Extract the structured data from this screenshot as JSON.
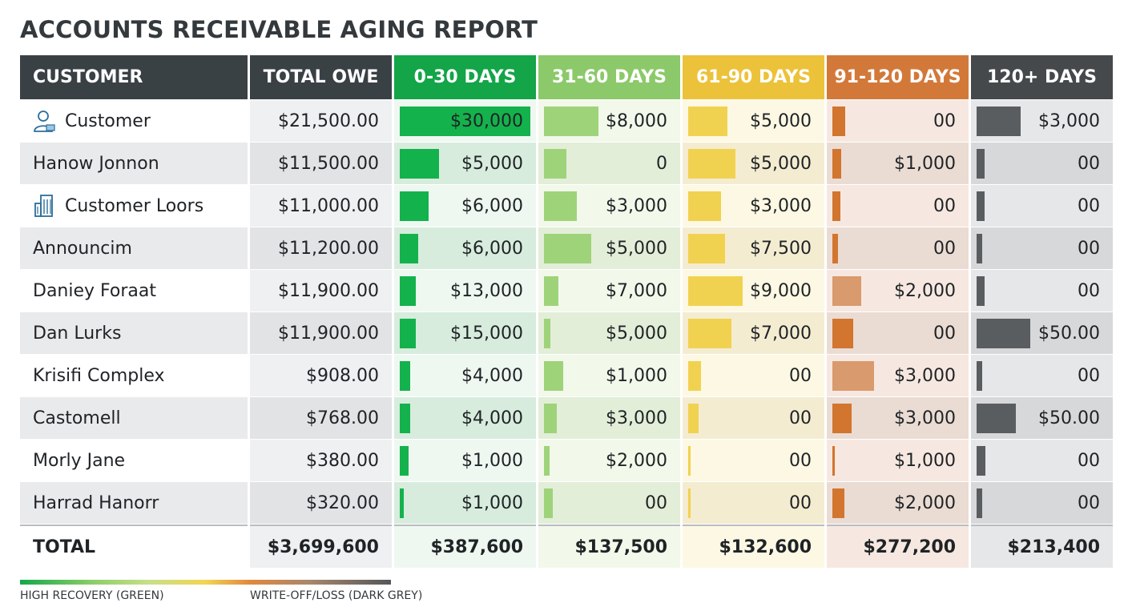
{
  "title": "ACCOUNTS RECEIVABLE AGING REPORT",
  "headers": {
    "customer": "CUSTOMER",
    "total": "TOTAL OWE",
    "b1": "0-30 DAYS",
    "b2": "31-60 DAYS",
    "b3": "61-90 DAYS",
    "b4": "91-120 DAYS",
    "b5": "120+ DAYS"
  },
  "colors": {
    "header_customer": "#3a4145",
    "header_total": "#3a4145",
    "header_b1": "#13a548",
    "header_b2": "#8cc96a",
    "header_b3": "#ecc23a",
    "header_b4": "#d2793a",
    "header_b5": "#45494b",
    "bar_b1": "#14b24c",
    "bar_b2": "#9fd37a",
    "bar_b3": "#f1d250",
    "bar_b4_light": "#d99a6e",
    "bar_b4_dark": "#d2752f",
    "bar_b5": "#5a5d60"
  },
  "rows": [
    {
      "customer": "Customer",
      "icon": "person-icon",
      "total": "$21,500.00",
      "b1": "$30,000",
      "b2": "$8,000",
      "b3": "$5,000",
      "b4": "00",
      "b5": "$3,000"
    },
    {
      "customer": "Hanow Jonnon",
      "icon": "",
      "total": "$11,500.00",
      "b1": "$5,000",
      "b2": "0",
      "b3": "$5,000",
      "b4": "$1,000",
      "b5": "00"
    },
    {
      "customer": "Customer Loors",
      "icon": "building-icon",
      "total": "$11,000.00",
      "b1": "$6,000",
      "b2": "$3,000",
      "b3": "$3,000",
      "b4": "00",
      "b5": "00"
    },
    {
      "customer": "Announcim",
      "icon": "",
      "total": "$11,200.00",
      "b1": "$6,000",
      "b2": "$5,000",
      "b3": "$7,500",
      "b4": "00",
      "b5": "00"
    },
    {
      "customer": "Daniey Foraat",
      "icon": "",
      "total": "$11,900.00",
      "b1": "$13,000",
      "b2": "$7,000",
      "b3": "$9,000",
      "b4": "$2,000",
      "b5": "00"
    },
    {
      "customer": "Dan Lurks",
      "icon": "",
      "total": "$11,900.00",
      "b1": "$15,000",
      "b2": "$5,000",
      "b3": "$7,000",
      "b4": "00",
      "b5": "$50.00"
    },
    {
      "customer": "Krisifi Complex",
      "icon": "",
      "total": "$908.00",
      "b1": "$4,000",
      "b2": "$1,000",
      "b3": "00",
      "b4": "$3,000",
      "b5": "00"
    },
    {
      "customer": "Castomell",
      "icon": "",
      "total": "$768.00",
      "b1": "$4,000",
      "b2": "$3,000",
      "b3": "00",
      "b4": "$3,000",
      "b5": "$50.00"
    },
    {
      "customer": "Morly Jane",
      "icon": "",
      "total": "$380.00",
      "b1": "$1,000",
      "b2": "$2,000",
      "b3": "00",
      "b4": "$1,000",
      "b5": "00"
    },
    {
      "customer": "Harrad Hanorr",
      "icon": "",
      "total": "$320.00",
      "b1": "$1,000",
      "b2": "00",
      "b3": "00",
      "b4": "$2,000",
      "b5": "00"
    }
  ],
  "bar_fill": [
    {
      "b1": 1.0,
      "b2": 0.42,
      "b3": 0.3,
      "b4": 0.1,
      "b5": 0.34
    },
    {
      "b1": 0.3,
      "b2": 0.17,
      "b3": 0.36,
      "b4": 0.07,
      "b5": 0.06
    },
    {
      "b1": 0.22,
      "b2": 0.25,
      "b3": 0.25,
      "b4": 0.06,
      "b5": 0.06
    },
    {
      "b1": 0.14,
      "b2": 0.36,
      "b3": 0.28,
      "b4": 0.04,
      "b5": 0.04
    },
    {
      "b1": 0.12,
      "b2": 0.11,
      "b3": 0.42,
      "b4": 0.22,
      "b5": 0.06
    },
    {
      "b1": 0.12,
      "b2": 0.05,
      "b3": 0.33,
      "b4": 0.16,
      "b5": 0.41
    },
    {
      "b1": 0.08,
      "b2": 0.15,
      "b3": 0.1,
      "b4": 0.32,
      "b5": 0.04
    },
    {
      "b1": 0.08,
      "b2": 0.1,
      "b3": 0.08,
      "b4": 0.15,
      "b5": 0.3
    },
    {
      "b1": 0.07,
      "b2": 0.04,
      "b3": 0.02,
      "b4": 0.02,
      "b5": 0.07
    },
    {
      "b1": 0.03,
      "b2": 0.07,
      "b3": 0.02,
      "b4": 0.09,
      "b5": 0.04
    }
  ],
  "b4_bar_tone": [
    "dark",
    "dark",
    "dark",
    "dark",
    "light",
    "dark",
    "light",
    "dark",
    "dark",
    "dark"
  ],
  "totals": {
    "label": "TOTAL",
    "total": "$3,699,600",
    "b1": "$387,600",
    "b2": "$137,500",
    "b3": "$132,600",
    "b4": "$277,200",
    "b5": "$213,400"
  },
  "legend": {
    "left": "HIGH RECOVERY (GREEN)",
    "right": "WRITE-OFF/LOSS (DARK GREY)"
  }
}
